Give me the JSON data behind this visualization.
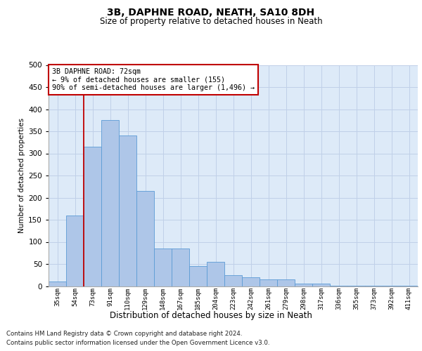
{
  "title1": "3B, DAPHNE ROAD, NEATH, SA10 8DH",
  "title2": "Size of property relative to detached houses in Neath",
  "xlabel": "Distribution of detached houses by size in Neath",
  "ylabel": "Number of detached properties",
  "bar_labels": [
    "35sqm",
    "54sqm",
    "73sqm",
    "91sqm",
    "110sqm",
    "129sqm",
    "148sqm",
    "167sqm",
    "185sqm",
    "204sqm",
    "223sqm",
    "242sqm",
    "261sqm",
    "279sqm",
    "298sqm",
    "317sqm",
    "336sqm",
    "355sqm",
    "373sqm",
    "392sqm",
    "411sqm"
  ],
  "bar_heights": [
    10,
    160,
    315,
    375,
    340,
    215,
    85,
    85,
    45,
    55,
    25,
    20,
    15,
    15,
    5,
    5,
    1,
    1,
    1,
    1,
    1
  ],
  "bar_color": "#aec6e8",
  "bar_edge_color": "#5b9bd5",
  "grid_color": "#c0d0e8",
  "background_color": "#ddeaf8",
  "vline_x_index": 2,
  "vline_color": "#c00000",
  "annotation_text": "3B DAPHNE ROAD: 72sqm\n← 9% of detached houses are smaller (155)\n90% of semi-detached houses are larger (1,496) →",
  "annotation_box_color": "#ffffff",
  "annotation_box_edge": "#c00000",
  "footer1": "Contains HM Land Registry data © Crown copyright and database right 2024.",
  "footer2": "Contains public sector information licensed under the Open Government Licence v3.0.",
  "ylim": [
    0,
    500
  ],
  "yticks": [
    0,
    50,
    100,
    150,
    200,
    250,
    300,
    350,
    400,
    450,
    500
  ]
}
